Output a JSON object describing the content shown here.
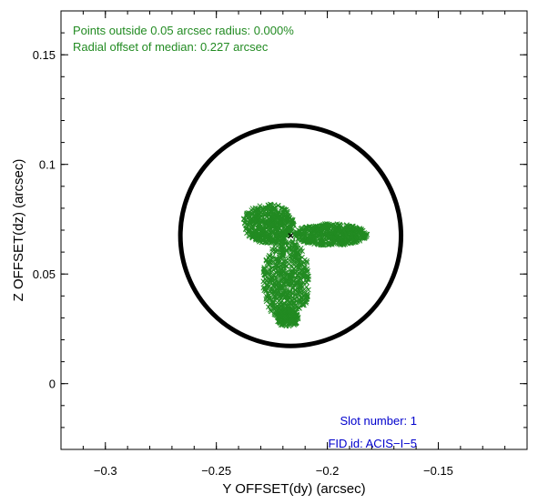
{
  "chart_data": {
    "type": "scatter",
    "title": "",
    "xlabel": "Y OFFSET(dy) (arcsec)",
    "ylabel": "Z OFFSET(dz) (arcsec)",
    "xlim": [
      -0.32,
      -0.11
    ],
    "ylim": [
      -0.03,
      0.17
    ],
    "x_ticks": [
      -0.3,
      -0.25,
      -0.2,
      -0.15
    ],
    "x_tick_labels": [
      "−0.3",
      "−0.25",
      "−0.2",
      "−0.15"
    ],
    "y_ticks": [
      0,
      0.05,
      0.1,
      0.15
    ],
    "y_tick_labels": [
      "0",
      "0.05",
      "0.1",
      "0.15"
    ],
    "grid": false,
    "circle": {
      "center": [
        -0.2165,
        0.0675
      ],
      "radius": 0.05
    },
    "median_point": [
      -0.2165,
      0.0675
    ],
    "scatter_cluster": {
      "marker": "x",
      "regions": [
        {
          "name": "upper-left arm",
          "x_range": [
            -0.238,
            -0.215
          ],
          "y_range": [
            0.064,
            0.082
          ]
        },
        {
          "name": "right arm",
          "x_range": [
            -0.215,
            -0.182
          ],
          "y_range": [
            0.063,
            0.073
          ]
        },
        {
          "name": "stem",
          "x_range": [
            -0.229,
            -0.208
          ],
          "y_range": [
            0.028,
            0.066
          ]
        },
        {
          "name": "tail",
          "x_range": [
            -0.223,
            -0.213
          ],
          "y_range": [
            0.026,
            0.034
          ]
        }
      ]
    },
    "annotations": {
      "points_outside": "Points outside 0.05 arcsec radius: 0.000%",
      "radial_offset": "Radial offset of median: 0.227 arcsec",
      "slot_number": "Slot number: 1",
      "fid_id": "FID id: ACIS−I−5"
    }
  },
  "colors": {
    "scatter": "#228b22",
    "annotation_green": "#228b22",
    "annotation_blue": "#0000cd",
    "circle": "#000000",
    "axes": "#000000"
  }
}
